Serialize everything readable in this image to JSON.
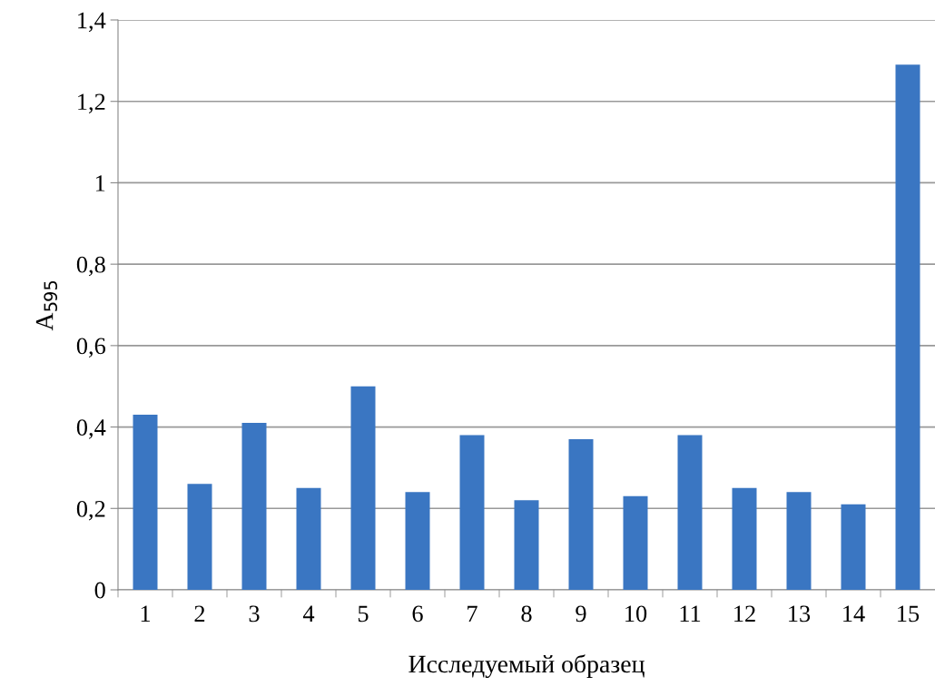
{
  "chart_data": {
    "type": "bar",
    "xlabel": "Исследуемый образец",
    "ylabel": "A$_{595}$",
    "categories": [
      "1",
      "2",
      "3",
      "4",
      "5",
      "6",
      "7",
      "8",
      "9",
      "10",
      "11",
      "12",
      "13",
      "14",
      "15"
    ],
    "values": [
      0.43,
      0.26,
      0.41,
      0.25,
      0.5,
      0.24,
      0.38,
      0.22,
      0.37,
      0.23,
      0.38,
      0.25,
      0.24,
      0.21,
      1.29
    ],
    "color": "#3a76c2",
    "ylim": [
      0,
      1.4
    ],
    "yticks": [
      {
        "value": 0,
        "label": "0"
      },
      {
        "value": 0.2,
        "label": "0,2"
      },
      {
        "value": 0.4,
        "label": "0,4"
      },
      {
        "value": 0.6,
        "label": "0,6"
      },
      {
        "value": 0.8,
        "label": "0,8"
      },
      {
        "value": 1,
        "label": "1"
      },
      {
        "value": 1.2,
        "label": "1,2"
      },
      {
        "value": 1.4,
        "label": "1,4"
      }
    ],
    "grid": "y"
  }
}
